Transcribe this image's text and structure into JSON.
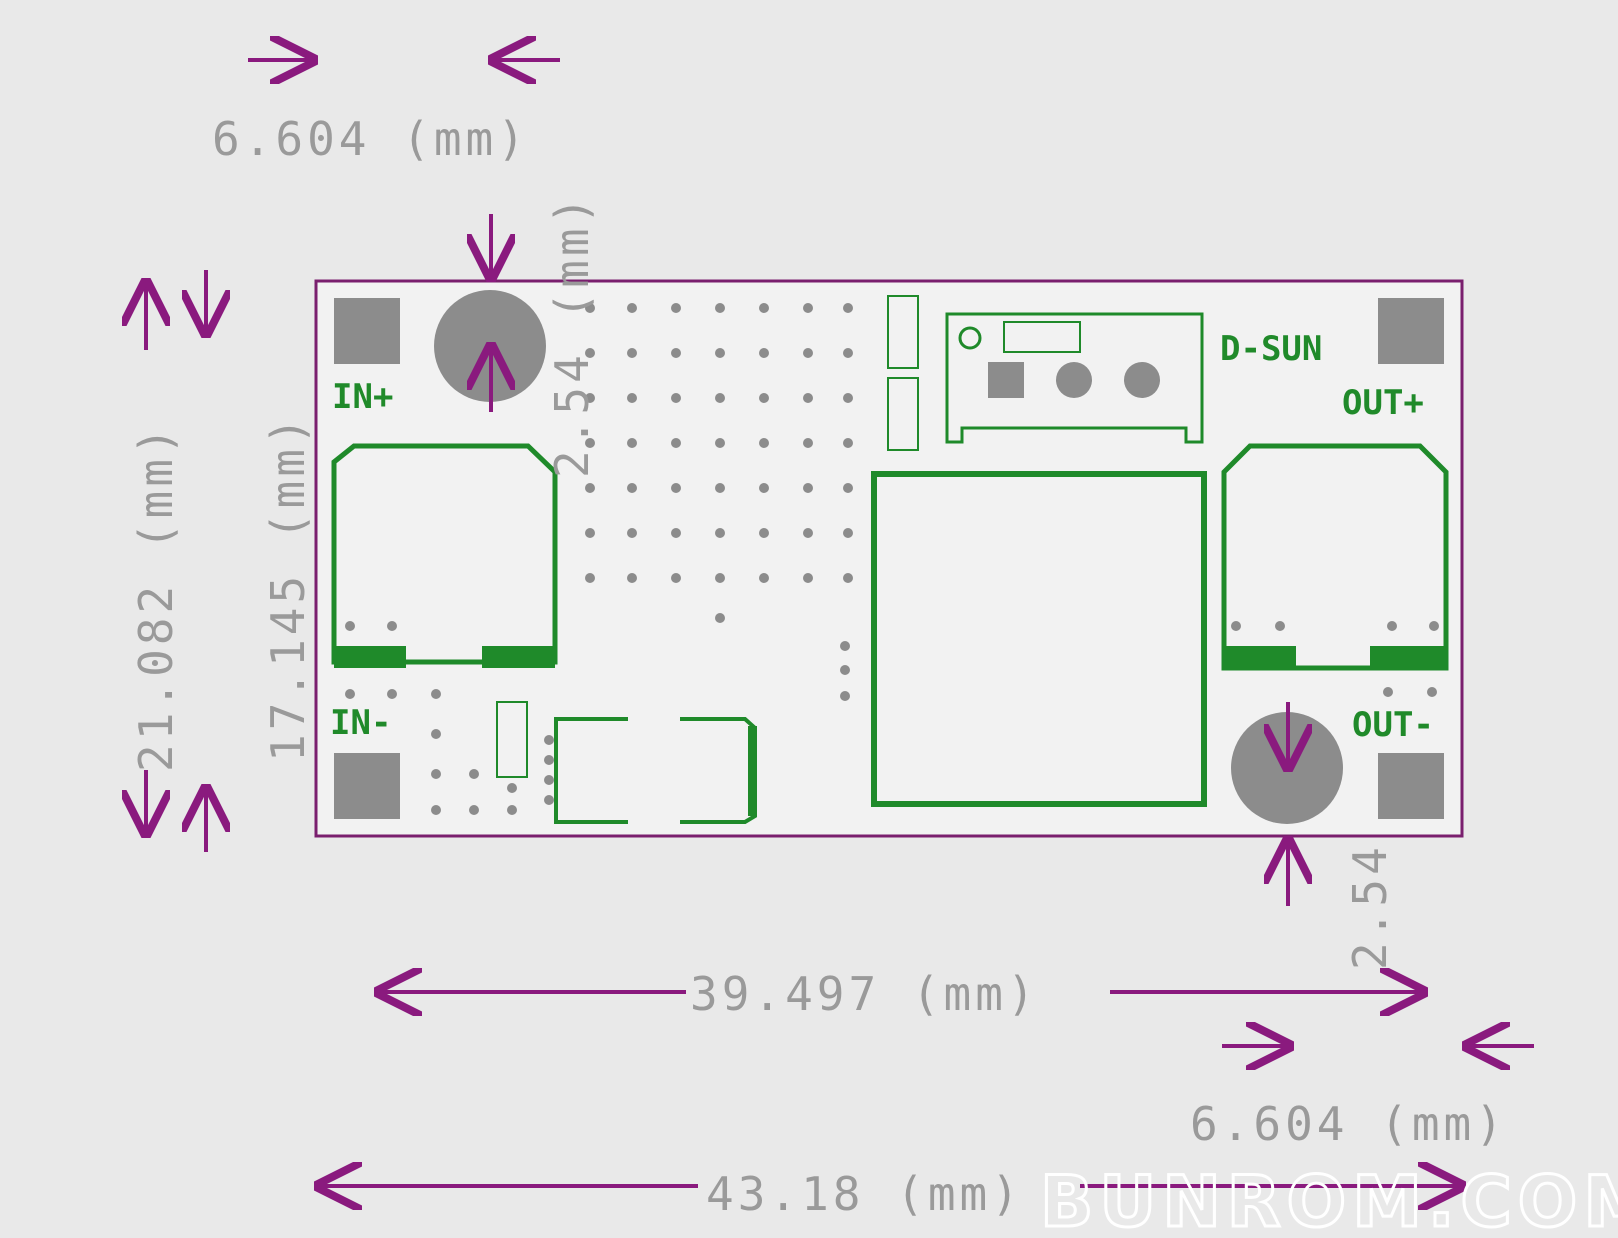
{
  "labels": {
    "in_plus": "IN+",
    "in_minus": "IN-",
    "out_plus": "OUT+",
    "out_minus": "OUT-",
    "brand": "D-SUN"
  },
  "dimensions": {
    "top_left_width": "6.604 (mm)",
    "hole_offset_top": "2.54 (mm)",
    "overall_height": "21.082 (mm)",
    "inner_height": "17.145 (mm)",
    "hole_spacing": "39.497 (mm)",
    "bottom_right_width": "6.604 (mm)",
    "overall_width": "43.18 (mm)",
    "hole_offset_bottom": "2.54"
  },
  "watermark": "BUNROM.COM",
  "colors": {
    "background": "#e9e9e9",
    "board_outline": "#7a1f6e",
    "dimension_arrow": "#8a1a7e",
    "dimension_text": "#9a9a9a",
    "copper_outline": "#1f8a2a",
    "pad": "#8c8c8c"
  }
}
